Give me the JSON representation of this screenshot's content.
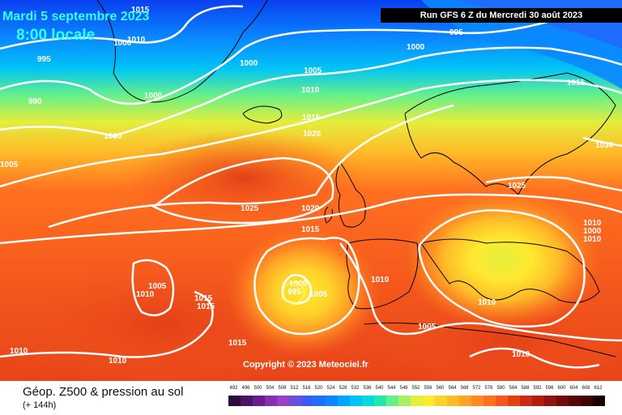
{
  "header": {
    "date_label": "Mardi 5 septembre 2023",
    "time_label": "8:00 locale",
    "run_label": "Run GFS 6 Z du Mercredi 30 août 2023"
  },
  "copyright": "Copyright © 2023 Meteociel.fr",
  "footer": {
    "title": "Géop. Z500 & pression au sol",
    "subtitle": "(+ 144h)"
  },
  "isobar_labels": [
    "1015",
    "1010",
    "995",
    "1000",
    "1000",
    "995",
    "1000",
    "990",
    "1000",
    "1000",
    "1005",
    "1010",
    "1015",
    "1020",
    "1000",
    "1005",
    "1025",
    "1020",
    "1015",
    "1010",
    "1005",
    "1015",
    "1010",
    "1015",
    "1030",
    "1025",
    "1015",
    "1010",
    "1005",
    "1010",
    "1000",
    "995",
    "1005",
    "1010",
    "1010",
    "1010",
    "1015",
    "1010"
  ],
  "legend": {
    "values": [
      "492",
      "496",
      "500",
      "504",
      "508",
      "512",
      "516",
      "520",
      "524",
      "528",
      "532",
      "536",
      "540",
      "544",
      "548",
      "552",
      "556",
      "560",
      "564",
      "568",
      "572",
      "576",
      "580",
      "584",
      "588",
      "592",
      "596",
      "600",
      "604",
      "608",
      "612"
    ],
    "colors": [
      "#2d0a3d",
      "#4a1466",
      "#6a1e8c",
      "#8a2db0",
      "#9a3fc8",
      "#6a4fd8",
      "#3c5cf0",
      "#1f6cff",
      "#0a88ff",
      "#00a6ff",
      "#00c4f5",
      "#00dcd8",
      "#22e8b0",
      "#66f08a",
      "#a8f060",
      "#e4ee3c",
      "#ffe930",
      "#ffd22a",
      "#ffba28",
      "#ffa226",
      "#ff8a24",
      "#ff7020",
      "#f4581c",
      "#e44018",
      "#cc2c14",
      "#b01e12",
      "#901410",
      "#720c0c",
      "#560808",
      "#3c0404",
      "#1a0000"
    ]
  },
  "colors": {
    "date_text": "#33ffff",
    "isobar": "#ffffff",
    "map_background": "#f26a1d"
  }
}
